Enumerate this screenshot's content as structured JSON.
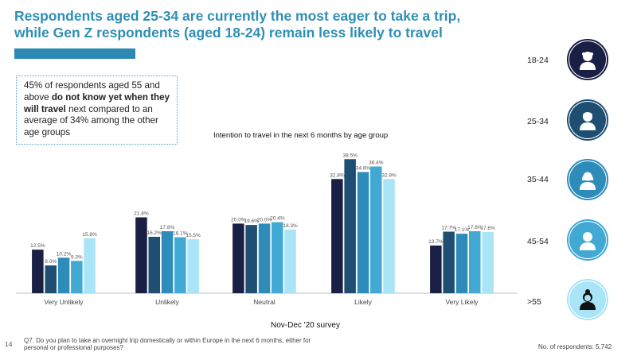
{
  "header": {
    "title_line1": "Respondents aged 25-34 are currently the most eager to take a trip,",
    "title_line2": "while Gen Z respondents (aged 18-24) remain less likely to travel"
  },
  "callout": {
    "t1": "45% of respondents aged 55 and above ",
    "t2": "do not know yet when they will travel",
    "t3": " next compared to an average of 34% among the other age groups"
  },
  "chart_data": {
    "type": "bar",
    "title": "Intention to travel in the next 6 months by age group",
    "xlabel": "Nov-Dec '20 survey",
    "ylabel": "",
    "ylim": [
      0,
      42
    ],
    "grid": false,
    "categories": [
      "Very Unlikely",
      "Unlikely",
      "Neutral",
      "Likely",
      "Very Likely"
    ],
    "series": [
      {
        "name": "18-24",
        "color": "#1a1f45",
        "values": [
          12.5,
          21.8,
          20.0,
          32.8,
          13.7
        ],
        "labels": [
          "12.5%",
          "21.8%",
          "20.0%",
          "32.8%",
          "13.7%"
        ]
      },
      {
        "name": "25-34",
        "color": "#1e4f73",
        "values": [
          8.0,
          16.2,
          19.6,
          38.5,
          17.7
        ],
        "labels": [
          "8.0%",
          "16.2%",
          "19.6%",
          "38.5%",
          "17.7%"
        ]
      },
      {
        "name": "35-44",
        "color": "#2e8cba",
        "values": [
          10.2,
          17.8,
          20.0,
          34.8,
          17.1
        ],
        "labels": [
          "10.2%",
          "17.8%",
          "20.0%",
          "34.8%",
          "17.1%"
        ]
      },
      {
        "name": "45-54",
        "color": "#41a9d4",
        "values": [
          9.3,
          16.1,
          20.4,
          36.4,
          17.8
        ],
        "labels": [
          "9.3%",
          "16.1%",
          "20.4%",
          "36.4%",
          "17.8%"
        ]
      },
      {
        "name": ">55",
        "color": "#a9e4f7",
        "values": [
          15.8,
          15.5,
          18.3,
          32.8,
          17.6
        ],
        "labels": [
          "15.8%",
          "15.5%",
          "18.3%",
          "32.8%",
          "17.6%"
        ]
      }
    ]
  },
  "sidebar": {
    "groups": [
      {
        "label": "18-24",
        "icon": "young-person-icon",
        "color": "#1a1f45"
      },
      {
        "label": "25-34",
        "icon": "man-icon",
        "color": "#1e4f73"
      },
      {
        "label": "35-44",
        "icon": "woman-icon",
        "color": "#2e8cba"
      },
      {
        "label": "45-54",
        "icon": "middle-aged-person-icon",
        "color": "#41a9d4"
      },
      {
        "label": ">55",
        "icon": "older-woman-icon",
        "color": "#a9e4f7"
      }
    ]
  },
  "footer": {
    "page_number": "14",
    "question": "Q7. Do you plan to take an overnight trip domestically or within Europe in the next 6 months, either for personal or professional purposes?",
    "respondents": "No. of respondents: 5,742"
  }
}
